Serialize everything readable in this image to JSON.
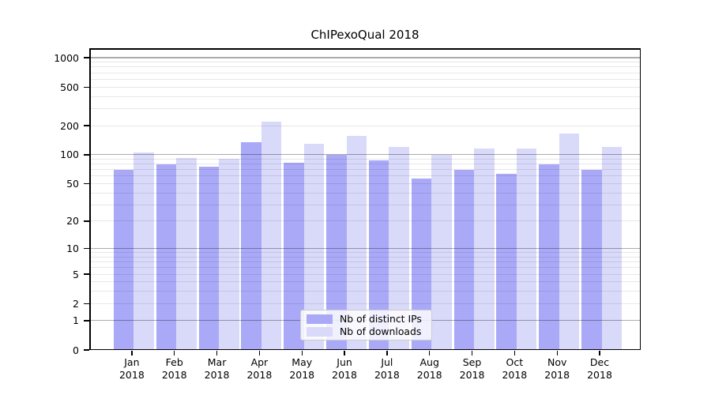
{
  "title": "ChIPexoQual 2018",
  "chart_data": {
    "type": "bar",
    "title": "ChIPexoQual 2018",
    "x_tick_months": [
      "Jan",
      "Feb",
      "Mar",
      "Apr",
      "May",
      "Jun",
      "Jul",
      "Aug",
      "Sep",
      "Oct",
      "Nov",
      "Dec"
    ],
    "x_tick_year": "2018",
    "series": [
      {
        "name": "Nb of distinct IPs",
        "color": "#a9a9f8",
        "values": [
          70,
          80,
          75,
          134,
          82,
          100,
          87,
          57,
          70,
          63,
          80,
          70
        ]
      },
      {
        "name": "Nb of downloads",
        "color": "#d9d9fa",
        "values": [
          105,
          92,
          90,
          219,
          130,
          158,
          121,
          100,
          116,
          117,
          166,
          120
        ]
      }
    ],
    "yscale": "log1p",
    "ylim": [
      0,
      1250
    ],
    "yticks": [
      0,
      1,
      2,
      5,
      10,
      20,
      50,
      100,
      200,
      500,
      1000
    ],
    "grid_major": [
      1,
      10,
      100,
      1000
    ],
    "grid_minor": [
      2,
      3,
      4,
      5,
      6,
      7,
      8,
      9,
      20,
      30,
      40,
      50,
      60,
      70,
      80,
      90,
      200,
      300,
      400,
      500,
      600,
      700,
      800,
      900
    ],
    "grid": "on",
    "legend": {
      "position": "lower center",
      "entries": [
        "Nb of distinct IPs",
        "Nb of downloads"
      ]
    }
  },
  "colors": {
    "bar_distinct_ips": "#a9a9f8",
    "bar_downloads": "#d9d9fa",
    "grid_major": "#ababab",
    "grid_minor": "#e7e7e7",
    "axis": "#000000",
    "background": "#ffffff"
  }
}
